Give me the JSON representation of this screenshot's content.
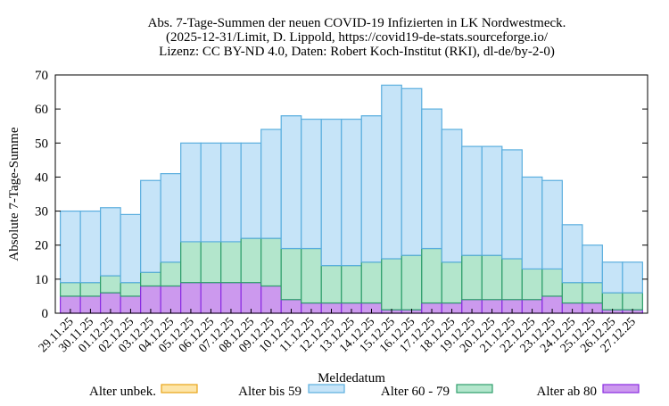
{
  "chart_data": {
    "type": "bar",
    "stacked": true,
    "title_lines": [
      "Abs. 7-Tage-Summen der neuen COVID-19 Infizierten in LK Nordwestmeck.",
      "(2025-12-31/Limit, D. Lippold, https://covid19-de-stats.sourceforge.io/",
      "Lizenz: CC BY-ND 4.0, Daten: Robert Koch-Institut (RKI), dl-de/by-2-0)"
    ],
    "xlabel": "Meldedatum",
    "ylabel": "Absolute 7-Tage-Summe",
    "ylim": [
      0,
      70
    ],
    "yticks": [
      0,
      10,
      20,
      30,
      40,
      50,
      60,
      70
    ],
    "categories": [
      "29.11.25",
      "30.11.25",
      "01.12.25",
      "02.12.25",
      "03.12.25",
      "04.12.25",
      "05.12.25",
      "06.12.25",
      "07.12.25",
      "08.12.25",
      "09.12.25",
      "10.12.25",
      "11.12.25",
      "12.12.25",
      "13.12.25",
      "14.12.25",
      "15.12.25",
      "16.12.25",
      "17.12.25",
      "18.12.25",
      "19.12.25",
      "20.12.25",
      "21.12.25",
      "22.12.25",
      "23.12.25",
      "24.12.25",
      "25.12.25",
      "26.12.25",
      "27.12.25"
    ],
    "series": [
      {
        "name": "Alter ab 80",
        "color": "#cc99ee",
        "stroke": "#8a2be2",
        "values": [
          5,
          5,
          6,
          5,
          8,
          8,
          9,
          9,
          9,
          9,
          8,
          4,
          3,
          3,
          3,
          3,
          1,
          1,
          3,
          3,
          4,
          4,
          4,
          4,
          5,
          3,
          3,
          1,
          1
        ]
      },
      {
        "name": "Alter 60 - 79",
        "color": "#b3e6cc",
        "stroke": "#2e9e6b",
        "values": [
          4,
          4,
          5,
          4,
          4,
          7,
          12,
          12,
          12,
          13,
          14,
          15,
          16,
          11,
          11,
          12,
          15,
          16,
          16,
          12,
          13,
          13,
          12,
          9,
          8,
          6,
          6,
          5,
          5
        ]
      },
      {
        "name": "Alter bis 59",
        "color": "#c6e4f8",
        "stroke": "#5aaede",
        "values": [
          21,
          21,
          20,
          20,
          27,
          26,
          29,
          29,
          29,
          28,
          32,
          39,
          38,
          43,
          43,
          43,
          51,
          49,
          41,
          39,
          32,
          32,
          32,
          27,
          26,
          17,
          11,
          9,
          9
        ]
      },
      {
        "name": "Alter unbek.",
        "color": "#fde5a8",
        "stroke": "#e8a317",
        "values": [
          0,
          0,
          0,
          0,
          0,
          0,
          0,
          0,
          0,
          0,
          0,
          0,
          0,
          0,
          0,
          0,
          0,
          0,
          0,
          0,
          0,
          0,
          0,
          0,
          0,
          0,
          0,
          0,
          0
        ]
      }
    ],
    "legend": {
      "placement": "bottom",
      "items": [
        {
          "label": "Alter unbek.",
          "color": "#fde5a8",
          "stroke": "#e8a317"
        },
        {
          "label": "Alter bis 59",
          "color": "#c6e4f8",
          "stroke": "#5aaede"
        },
        {
          "label": "Alter 60 - 79",
          "color": "#b3e6cc",
          "stroke": "#2e9e6b"
        },
        {
          "label": "Alter ab 80",
          "color": "#cc99ee",
          "stroke": "#8a2be2"
        }
      ]
    },
    "grid": false
  }
}
